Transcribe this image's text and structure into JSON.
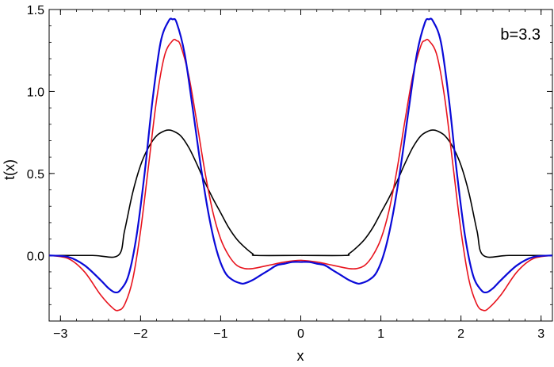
{
  "chart_data": {
    "type": "line",
    "xlabel": "x",
    "ylabel": "t(x)",
    "xlim": [
      -3.14159,
      3.14159
    ],
    "ylim": [
      -0.4,
      1.5
    ],
    "x_ticks": [
      -3,
      -2,
      -1,
      0,
      1,
      2,
      3
    ],
    "x_tick_labels": [
      "−3",
      "−2",
      "−1",
      "0",
      "1",
      "2",
      "3"
    ],
    "y_ticks": [
      0.0,
      0.5,
      1.0,
      1.5
    ],
    "y_tick_labels": [
      "0.0",
      "0.5",
      "1.0",
      "1.5"
    ],
    "annotation": "b=3.3",
    "grid": false,
    "series": [
      {
        "color": "#000000",
        "x": [
          -3.14,
          -2.6,
          -2.28,
          -2.2,
          -2.1,
          -2.0,
          -1.9,
          -1.8,
          -1.7,
          -1.65,
          -1.6,
          -1.5,
          -1.4,
          -1.3,
          -1.2,
          -1.1,
          -1.0,
          -0.9,
          -0.8,
          -0.7,
          -0.6,
          -0.55,
          0.0,
          0.55,
          0.6,
          0.7,
          0.8,
          0.9,
          1.0,
          1.1,
          1.2,
          1.3,
          1.4,
          1.5,
          1.6,
          1.65,
          1.7,
          1.8,
          1.9,
          2.0,
          2.1,
          2.2,
          2.28,
          2.6,
          3.14
        ],
        "y": [
          0.0,
          0.0,
          0.0,
          0.15,
          0.38,
          0.55,
          0.66,
          0.73,
          0.76,
          0.765,
          0.76,
          0.73,
          0.66,
          0.56,
          0.45,
          0.35,
          0.26,
          0.17,
          0.1,
          0.05,
          0.01,
          0.0,
          0.0,
          0.0,
          0.01,
          0.05,
          0.1,
          0.17,
          0.26,
          0.35,
          0.45,
          0.56,
          0.66,
          0.73,
          0.76,
          0.765,
          0.76,
          0.73,
          0.66,
          0.55,
          0.38,
          0.15,
          0.0,
          0.0,
          0.0
        ]
      },
      {
        "color": "#e8141e",
        "x": [
          -3.14,
          -2.9,
          -2.7,
          -2.5,
          -2.35,
          -2.28,
          -2.2,
          -2.1,
          -2.0,
          -1.9,
          -1.8,
          -1.7,
          -1.6,
          -1.55,
          -1.5,
          -1.4,
          -1.3,
          -1.2,
          -1.1,
          -1.0,
          -0.9,
          -0.8,
          -0.7,
          -0.6,
          -0.4,
          -0.2,
          0.0,
          0.2,
          0.4,
          0.6,
          0.7,
          0.8,
          0.9,
          1.0,
          1.1,
          1.2,
          1.3,
          1.4,
          1.5,
          1.55,
          1.6,
          1.7,
          1.8,
          1.9,
          2.0,
          2.1,
          2.2,
          2.28,
          2.35,
          2.5,
          2.7,
          2.9,
          3.14
        ],
        "y": [
          0.0,
          -0.02,
          -0.1,
          -0.24,
          -0.32,
          -0.335,
          -0.3,
          -0.15,
          0.15,
          0.55,
          0.95,
          1.22,
          1.31,
          1.31,
          1.28,
          1.1,
          0.82,
          0.52,
          0.27,
          0.1,
          0.0,
          -0.06,
          -0.08,
          -0.08,
          -0.06,
          -0.04,
          -0.03,
          -0.04,
          -0.06,
          -0.08,
          -0.08,
          -0.06,
          0.0,
          0.1,
          0.27,
          0.52,
          0.82,
          1.1,
          1.28,
          1.31,
          1.31,
          1.22,
          0.95,
          0.55,
          0.15,
          -0.15,
          -0.3,
          -0.335,
          -0.32,
          -0.24,
          -0.1,
          -0.02,
          0.0
        ]
      },
      {
        "color": "#0a0ad8",
        "x": [
          -3.14,
          -2.9,
          -2.7,
          -2.5,
          -2.4,
          -2.32,
          -2.25,
          -2.15,
          -2.05,
          -1.95,
          -1.85,
          -1.75,
          -1.65,
          -1.6,
          -1.55,
          -1.45,
          -1.35,
          -1.25,
          -1.15,
          -1.05,
          -0.95,
          -0.85,
          -0.75,
          -0.7,
          -0.6,
          -0.5,
          -0.4,
          -0.3,
          -0.2,
          -0.1,
          0.0,
          0.1,
          0.2,
          0.3,
          0.4,
          0.5,
          0.6,
          0.7,
          0.75,
          0.85,
          0.95,
          1.05,
          1.15,
          1.25,
          1.35,
          1.45,
          1.55,
          1.6,
          1.65,
          1.75,
          1.85,
          1.95,
          2.05,
          2.15,
          2.25,
          2.32,
          2.4,
          2.5,
          2.7,
          2.9,
          3.14
        ],
        "y": [
          0.0,
          -0.01,
          -0.06,
          -0.15,
          -0.2,
          -0.225,
          -0.21,
          -0.12,
          0.12,
          0.5,
          0.95,
          1.3,
          1.43,
          1.44,
          1.42,
          1.23,
          0.9,
          0.55,
          0.25,
          0.03,
          -0.1,
          -0.15,
          -0.17,
          -0.17,
          -0.15,
          -0.12,
          -0.09,
          -0.06,
          -0.05,
          -0.04,
          -0.04,
          -0.04,
          -0.05,
          -0.06,
          -0.09,
          -0.12,
          -0.15,
          -0.17,
          -0.17,
          -0.15,
          -0.1,
          0.03,
          0.25,
          0.55,
          0.9,
          1.23,
          1.42,
          1.44,
          1.43,
          1.3,
          0.95,
          0.5,
          0.12,
          -0.12,
          -0.21,
          -0.225,
          -0.2,
          -0.15,
          -0.06,
          -0.01,
          0.0
        ]
      }
    ]
  }
}
